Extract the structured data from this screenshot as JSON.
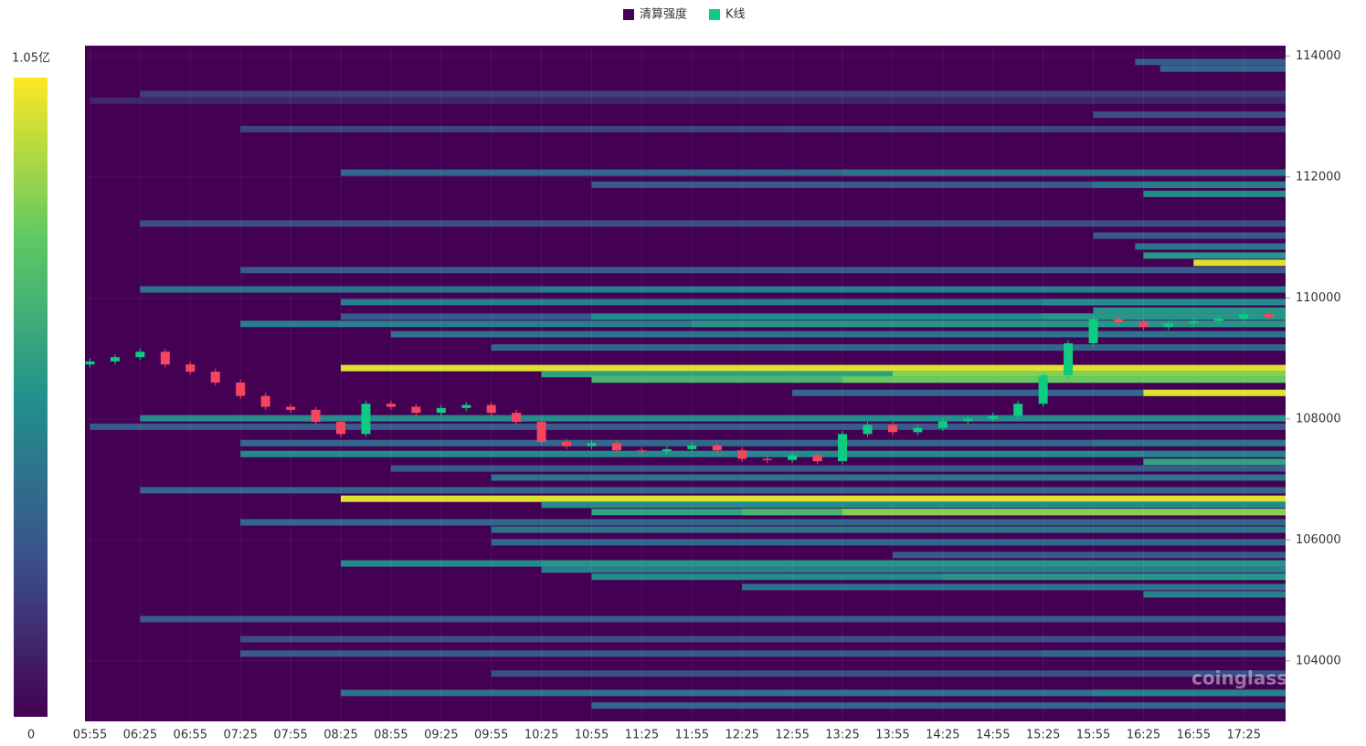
{
  "chart_data": {
    "type": "liquidation-heatmap",
    "xlim": [
      "05:52",
      "17:50"
    ],
    "xticks": [
      "05:55",
      "06:25",
      "06:55",
      "07:25",
      "07:55",
      "08:25",
      "08:55",
      "09:25",
      "09:55",
      "10:25",
      "10:55",
      "11:25",
      "11:55",
      "12:25",
      "12:55",
      "13:25",
      "13:55",
      "14:25",
      "14:55",
      "15:25",
      "15:55",
      "16:25",
      "16:55",
      "17:25"
    ],
    "ylim": [
      103000,
      114170
    ],
    "yticks": [
      104000,
      106000,
      108000,
      110000,
      112000,
      114000
    ],
    "grid": true,
    "zlim": [
      0,
      1.05
    ],
    "zticks": [
      {
        "value": 1.05,
        "label": "1.05亿"
      },
      0
    ],
    "series": [
      {
        "name": "清算强度",
        "color": "#440154"
      },
      {
        "name": "K线",
        "color": "#0ecb81"
      }
    ],
    "down_color": "#f6465d",
    "annotation": "coinglass",
    "heatmap": [
      {
        "price": 113900,
        "from": "16:20",
        "value": 0.3
      },
      {
        "price": 113790,
        "from": "16:35",
        "value": 0.35
      },
      {
        "price": 113370,
        "from": "06:25",
        "value": 0.2
      },
      {
        "price": 113260,
        "from": "05:55",
        "value": 0.12
      },
      {
        "price": 113030,
        "from": "15:55",
        "value": 0.25
      },
      {
        "price": 112790,
        "from": "07:25",
        "value": 0.22
      },
      {
        "price": 112070,
        "from": "08:25",
        "value": 0.35
      },
      {
        "price": 112070,
        "from": "13:25",
        "value": 0.4
      },
      {
        "price": 111870,
        "from": "10:55",
        "value": 0.3
      },
      {
        "price": 111870,
        "from": "15:55",
        "value": 0.4
      },
      {
        "price": 111870,
        "from": "16:25",
        "value": 0.45
      },
      {
        "price": 111720,
        "from": "16:25",
        "value": 0.5
      },
      {
        "price": 111230,
        "from": "06:25",
        "value": 0.25
      },
      {
        "price": 111030,
        "from": "15:55",
        "value": 0.3
      },
      {
        "price": 110850,
        "from": "16:20",
        "value": 0.4
      },
      {
        "price": 110700,
        "from": "16:25",
        "value": 0.55
      },
      {
        "price": 110580,
        "from": "16:55",
        "value": 1.0
      },
      {
        "price": 110460,
        "from": "07:25",
        "value": 0.3
      },
      {
        "price": 110140,
        "from": "06:25",
        "value": 0.4
      },
      {
        "price": 110140,
        "from": "10:25",
        "value": 0.45
      },
      {
        "price": 109930,
        "from": "08:25",
        "value": 0.45
      },
      {
        "price": 109930,
        "from": "15:25",
        "value": 0.5
      },
      {
        "price": 109790,
        "from": "15:55",
        "value": 0.55
      },
      {
        "price": 109690,
        "from": "08:25",
        "value": 0.3
      },
      {
        "price": 109690,
        "from": "10:55",
        "value": 0.5
      },
      {
        "price": 109690,
        "from": "15:25",
        "value": 0.55
      },
      {
        "price": 109570,
        "from": "07:25",
        "value": 0.45
      },
      {
        "price": 109570,
        "from": "11:55",
        "value": 0.55
      },
      {
        "price": 109400,
        "from": "08:55",
        "value": 0.4
      },
      {
        "price": 109180,
        "from": "09:55",
        "value": 0.35
      },
      {
        "price": 108840,
        "from": "08:25",
        "value": 1.0
      },
      {
        "price": 108740,
        "from": "10:25",
        "value": 0.6
      },
      {
        "price": 108740,
        "from": "13:55",
        "value": 0.85
      },
      {
        "price": 108650,
        "from": "10:55",
        "value": 0.7
      },
      {
        "price": 108650,
        "from": "13:25",
        "value": 0.8
      },
      {
        "price": 108430,
        "from": "12:55",
        "value": 0.35
      },
      {
        "price": 108430,
        "from": "16:25",
        "value": 1.0
      },
      {
        "price": 108010,
        "from": "06:25",
        "value": 0.5
      },
      {
        "price": 107870,
        "from": "05:55",
        "value": 0.3
      },
      {
        "price": 107600,
        "from": "07:25",
        "value": 0.35
      },
      {
        "price": 107600,
        "from": "15:55",
        "value": 0.4
      },
      {
        "price": 107420,
        "from": "07:25",
        "value": 0.5
      },
      {
        "price": 107420,
        "from": "16:25",
        "value": 0.45
      },
      {
        "price": 107290,
        "from": "16:25",
        "value": 0.6
      },
      {
        "price": 107180,
        "from": "08:55",
        "value": 0.3
      },
      {
        "price": 107030,
        "from": "09:55",
        "value": 0.4
      },
      {
        "price": 106820,
        "from": "06:25",
        "value": 0.35
      },
      {
        "price": 106680,
        "from": "08:25",
        "value": 1.0
      },
      {
        "price": 106580,
        "from": "10:25",
        "value": 0.5
      },
      {
        "price": 106460,
        "from": "10:55",
        "value": 0.6
      },
      {
        "price": 106460,
        "from": "12:25",
        "value": 0.7
      },
      {
        "price": 106460,
        "from": "13:25",
        "value": 0.85
      },
      {
        "price": 106290,
        "from": "07:25",
        "value": 0.35
      },
      {
        "price": 106170,
        "from": "09:55",
        "value": 0.4
      },
      {
        "price": 105960,
        "from": "09:55",
        "value": 0.35
      },
      {
        "price": 105750,
        "from": "13:55",
        "value": 0.3
      },
      {
        "price": 105610,
        "from": "08:25",
        "value": 0.5
      },
      {
        "price": 105610,
        "from": "10:25",
        "value": 0.55
      },
      {
        "price": 105510,
        "from": "10:25",
        "value": 0.45
      },
      {
        "price": 105390,
        "from": "10:55",
        "value": 0.5
      },
      {
        "price": 105390,
        "from": "14:25",
        "value": 0.55
      },
      {
        "price": 105220,
        "from": "12:25",
        "value": 0.4
      },
      {
        "price": 105100,
        "from": "16:25",
        "value": 0.45
      },
      {
        "price": 104690,
        "from": "06:25",
        "value": 0.3
      },
      {
        "price": 104360,
        "from": "07:25",
        "value": 0.25
      },
      {
        "price": 104120,
        "from": "07:25",
        "value": 0.3
      },
      {
        "price": 104120,
        "from": "15:25",
        "value": 0.35
      },
      {
        "price": 103790,
        "from": "09:55",
        "value": 0.25
      },
      {
        "price": 103470,
        "from": "08:25",
        "value": 0.4
      },
      {
        "price": 103470,
        "from": "15:55",
        "value": 0.45
      },
      {
        "price": 103260,
        "from": "10:55",
        "value": 0.35
      }
    ],
    "candles": {
      "x": [
        "05:55",
        "06:10",
        "06:25",
        "06:40",
        "06:55",
        "07:10",
        "07:25",
        "07:40",
        "07:55",
        "08:10",
        "08:25",
        "08:40",
        "08:55",
        "09:10",
        "09:25",
        "09:40",
        "09:55",
        "10:10",
        "10:25",
        "10:40",
        "10:55",
        "11:10",
        "11:25",
        "11:40",
        "11:55",
        "12:10",
        "12:25",
        "12:40",
        "12:55",
        "13:10",
        "13:25",
        "13:40",
        "13:55",
        "14:10",
        "14:25",
        "14:40",
        "14:55",
        "15:10",
        "15:25",
        "15:40",
        "15:55",
        "16:10",
        "16:25",
        "16:40",
        "16:55",
        "17:10",
        "17:25",
        "17:40"
      ],
      "open": [
        108900,
        108950,
        109020,
        109110,
        108900,
        108780,
        108600,
        108380,
        108200,
        108150,
        107950,
        107750,
        108250,
        108200,
        108100,
        108180,
        108230,
        108100,
        107950,
        107620,
        107550,
        107600,
        107480,
        107460,
        107500,
        107560,
        107480,
        107340,
        107320,
        107400,
        107300,
        107750,
        107900,
        107780,
        107850,
        107960,
        108000,
        108050,
        108250,
        108720,
        109250,
        109650,
        109600,
        109520,
        109580,
        109620,
        109660,
        109730
      ],
      "high": [
        109000,
        109070,
        109160,
        109160,
        108950,
        108830,
        108650,
        108430,
        108250,
        108200,
        108000,
        108300,
        108300,
        108250,
        108230,
        108280,
        108280,
        108150,
        108000,
        107670,
        107650,
        107650,
        107530,
        107550,
        107610,
        107610,
        107530,
        107390,
        107450,
        107450,
        107800,
        107950,
        107950,
        107900,
        108010,
        108050,
        108100,
        108300,
        108770,
        109300,
        109700,
        109700,
        109650,
        109630,
        109670,
        109710,
        109780,
        109780
      ],
      "low": [
        108850,
        108900,
        108970,
        108850,
        108730,
        108550,
        108330,
        108150,
        108100,
        107900,
        107700,
        107700,
        108150,
        108050,
        108050,
        108130,
        108050,
        107900,
        107570,
        107500,
        107500,
        107430,
        107410,
        107410,
        107450,
        107430,
        107290,
        107270,
        107270,
        107250,
        107250,
        107700,
        107730,
        107730,
        107800,
        107910,
        107950,
        108000,
        108200,
        108670,
        109200,
        109550,
        109470,
        109470,
        109530,
        109570,
        109610,
        109630
      ],
      "close": [
        108950,
        109020,
        109110,
        108900,
        108780,
        108600,
        108380,
        108200,
        108150,
        107950,
        107750,
        108250,
        108200,
        108100,
        108180,
        108230,
        108100,
        107950,
        107620,
        107550,
        107600,
        107480,
        107460,
        107500,
        107560,
        107480,
        107340,
        107320,
        107400,
        107300,
        107750,
        107900,
        107780,
        107850,
        107960,
        108000,
        108050,
        108250,
        108720,
        109250,
        109650,
        109600,
        109520,
        109580,
        109620,
        109660,
        109730,
        109680
      ]
    }
  }
}
